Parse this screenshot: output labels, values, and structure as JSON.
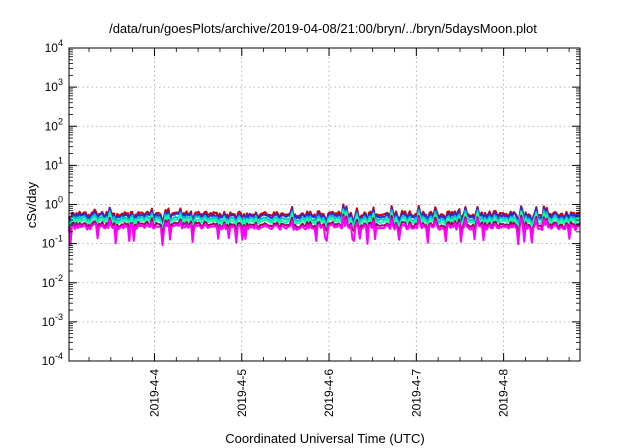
{
  "chart_data": {
    "type": "line",
    "title": "/data/run/goesPlots/archive/2019-04-08/21:00/bryn/../bryn/5daysMoon.plot",
    "xlabel": "Coordinated Universal Time (UTC)",
    "ylabel": "cSv/day",
    "y_scale": "log",
    "ylim": [
      0.0001,
      10000
    ],
    "y_ticks": [
      {
        "base": "10",
        "exp": "4"
      },
      {
        "base": "10",
        "exp": "3"
      },
      {
        "base": "10",
        "exp": "2"
      },
      {
        "base": "10",
        "exp": "1"
      },
      {
        "base": "10",
        "exp": "0"
      },
      {
        "base": "10",
        "exp": "-1"
      },
      {
        "base": "10",
        "exp": "-2"
      },
      {
        "base": "10",
        "exp": "-3"
      },
      {
        "base": "10",
        "exp": "-4"
      }
    ],
    "xlim": [
      "2019-04-03T00:30",
      "2019-04-08T21:00"
    ],
    "x_ticks": [
      "2019-4-4",
      "2019-4-5",
      "2019-4-6",
      "2019-4-7",
      "2019-4-8"
    ],
    "grid": true,
    "series": [
      {
        "color": "#d00000",
        "base": 0.58
      },
      {
        "color": "#2a2adf",
        "base": 0.52
      },
      {
        "color": "#00c8c8",
        "base": 0.44
      },
      {
        "color": "#14ffa0",
        "base": 0.38
      },
      {
        "color": "#a00060",
        "base": 0.31
      },
      {
        "color": "#ff00ff",
        "base": 0.27
      }
    ]
  }
}
